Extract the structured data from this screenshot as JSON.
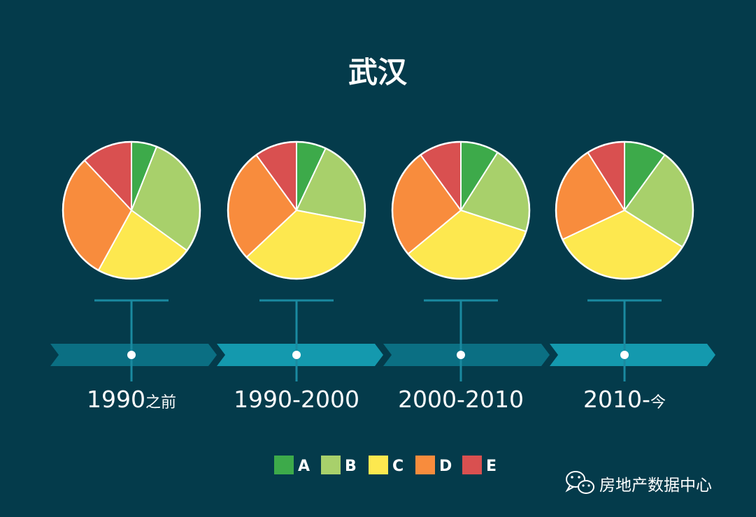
{
  "chart_data": {
    "type": "pie",
    "title": "武汉",
    "categories": [
      "A",
      "B",
      "C",
      "D",
      "E"
    ],
    "colors": {
      "A": "#3daa4a",
      "B": "#a8d06b",
      "C": "#fde84f",
      "D": "#f88c3d",
      "E": "#d95050"
    },
    "periods": [
      {
        "label_main": "1990",
        "label_suffix": "之前",
        "values": [
          6,
          29,
          23,
          30,
          12
        ]
      },
      {
        "label_main": "1990-2000",
        "label_suffix": "",
        "values": [
          7,
          21,
          35,
          27,
          10
        ]
      },
      {
        "label_main": "2000-2010",
        "label_suffix": "",
        "values": [
          9,
          21,
          34,
          26,
          10
        ]
      },
      {
        "label_main": "2010-",
        "label_suffix": "今",
        "values": [
          10,
          24,
          34,
          23,
          9
        ]
      }
    ],
    "legend_placement": "bottom-center"
  },
  "colors": {
    "background": "#043b4b",
    "arrow_dark": "#0b6f83",
    "arrow_light": "#1499ae",
    "connector": "#1a8aa0"
  },
  "brand": {
    "icon": "wechat-icon",
    "text": "房地产数据中心"
  }
}
